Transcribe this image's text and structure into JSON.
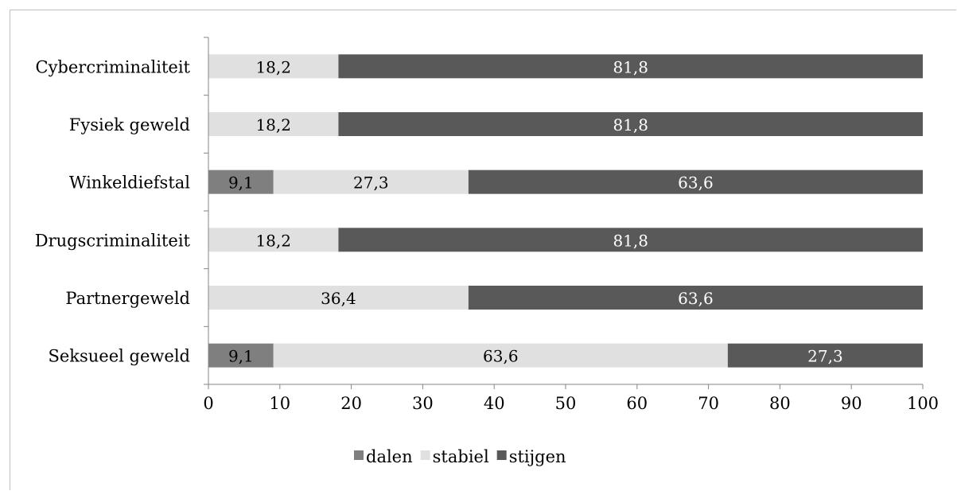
{
  "chart_data": {
    "type": "bar",
    "orientation": "horizontal",
    "stacked": true,
    "categories": [
      "Cybercriminaliteit",
      "Fysiek geweld",
      "Winkeldiefstal",
      "Drugscriminaliteit",
      "Partnergeweld",
      "Seksueel geweld"
    ],
    "series": [
      {
        "name": "dalen",
        "values": [
          0,
          0,
          9.1,
          0,
          0,
          9.1
        ],
        "color": "#7f7f7f",
        "label_color": "#000000"
      },
      {
        "name": "stabiel",
        "values": [
          18.2,
          18.2,
          27.3,
          18.2,
          36.4,
          63.6
        ],
        "color": "#e0e0e0",
        "label_color": "#000000"
      },
      {
        "name": "stijgen",
        "values": [
          81.8,
          81.8,
          63.6,
          81.8,
          63.6,
          27.3
        ],
        "color": "#595959",
        "label_color": "#ffffff"
      }
    ],
    "xlim": [
      0,
      100
    ],
    "xticks": [
      0,
      10,
      20,
      30,
      40,
      50,
      60,
      70,
      80,
      90,
      100
    ],
    "legend_position": "bottom",
    "grid": false
  }
}
